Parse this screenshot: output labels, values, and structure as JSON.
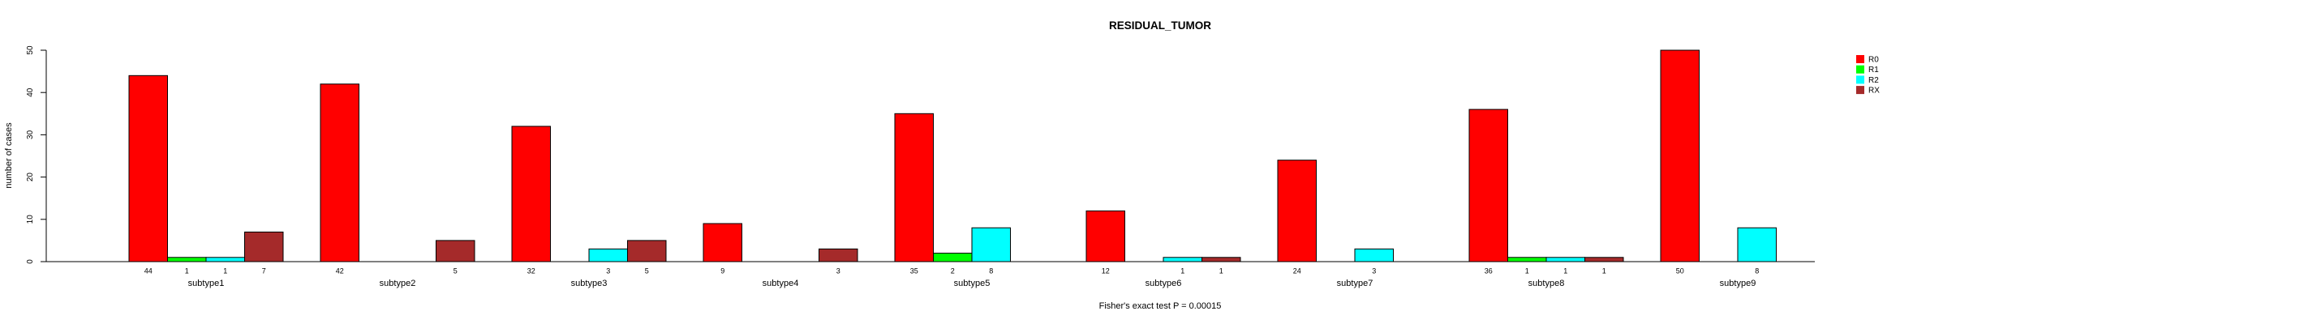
{
  "title": "RESIDUAL_TUMOR",
  "annotation": "Fisher's exact test P = 0.00015",
  "ylabel": "number of cases",
  "legend": {
    "entries": [
      {
        "label": "R0",
        "color": "#FF0000"
      },
      {
        "label": "R1",
        "color": "#00FF00"
      },
      {
        "label": "R2",
        "color": "#00FFFF"
      },
      {
        "label": "RX",
        "color": "#A52A2A"
      }
    ]
  },
  "chart_data": {
    "type": "bar",
    "title": "RESIDUAL_TUMOR",
    "xlabel": "",
    "ylabel": "number of cases",
    "ylim": [
      0,
      50
    ],
    "yticks": [
      0,
      10,
      20,
      30,
      40,
      50
    ],
    "grid": false,
    "legend_position": "right",
    "bar_value_labels": "shown under each nonzero bar",
    "annotation": "Fisher's exact test P = 0.00015",
    "categories": [
      "subtype1",
      "subtype2",
      "subtype3",
      "subtype4",
      "subtype5",
      "subtype6",
      "subtype7",
      "subtype8",
      "subtype9"
    ],
    "series": [
      {
        "name": "R0",
        "color": "#FF0000",
        "values": [
          44,
          42,
          32,
          9,
          35,
          12,
          24,
          36,
          50
        ]
      },
      {
        "name": "R1",
        "color": "#00FF00",
        "values": [
          1,
          0,
          0,
          0,
          2,
          0,
          0,
          1,
          0
        ]
      },
      {
        "name": "R2",
        "color": "#00FFFF",
        "values": [
          1,
          0,
          3,
          0,
          8,
          1,
          3,
          1,
          8
        ]
      },
      {
        "name": "RX",
        "color": "#A52A2A",
        "values": [
          7,
          5,
          5,
          3,
          0,
          1,
          0,
          1,
          0
        ]
      }
    ]
  }
}
